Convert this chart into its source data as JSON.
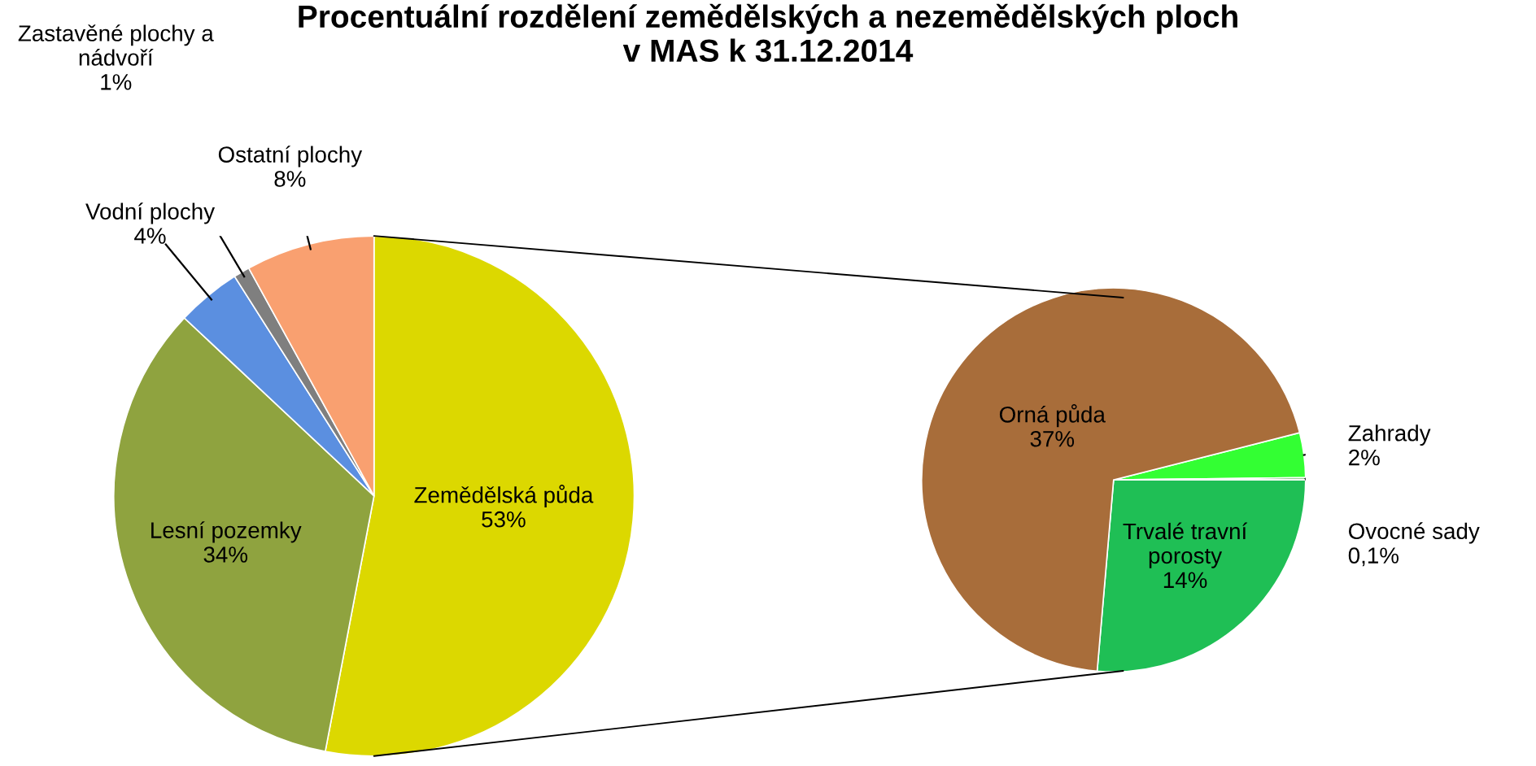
{
  "chart_data": [
    {
      "type": "pie",
      "title": "Procentuální rozdělení zemědělských a nezemědělských ploch\nv MAS k 31.12.2014",
      "categories": [
        "Zemědělská půda",
        "Lesní pozemky",
        "Vodní plochy",
        "Zastavěné plochy a nádvoří",
        "Ostatní plochy"
      ],
      "values": [
        53,
        34,
        4,
        1,
        8
      ],
      "value_labels": [
        "53%",
        "34%",
        "4%",
        "1%",
        "8%"
      ],
      "colors": [
        "#dcd800",
        "#8fa33f",
        "#5b8fe0",
        "#7f7f7f",
        "#f9a070"
      ]
    },
    {
      "type": "pie",
      "categories": [
        "Zahrady",
        "Ovocné sady",
        "Trvalé travní porosty",
        "Orná půda"
      ],
      "values": [
        2,
        0.1,
        14,
        37
      ],
      "value_labels": [
        "2%",
        "0,1%",
        "14%",
        "37%"
      ],
      "colors": [
        "#33ff33",
        "#2e9e2e",
        "#1fbf55",
        "#a86d3a"
      ]
    }
  ]
}
